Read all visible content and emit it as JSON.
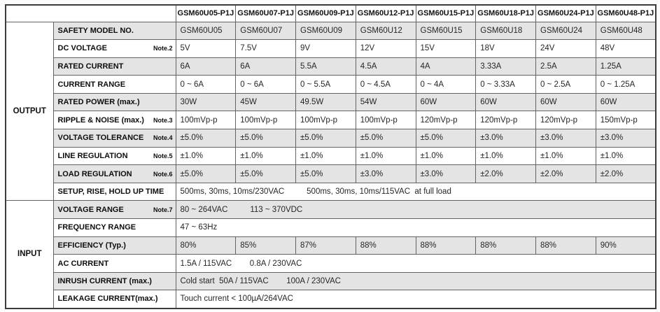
{
  "colors": {
    "row_shade": "#e4e4e4",
    "grid_border": "#636363",
    "outer_border": "#3c3c3c",
    "text": "#111111"
  },
  "header": {
    "corner_label": "",
    "models": [
      "GSM60U05-P1J",
      "GSM60U07-P1J",
      "GSM60U09-P1J",
      "GSM60U12-P1J",
      "GSM60U15-P1J",
      "GSM60U18-P1J",
      "GSM60U24-P1J",
      "GSM60U48-P1J"
    ]
  },
  "sections": [
    {
      "label": "OUTPUT",
      "rows": [
        {
          "label": "SAFETY MODEL NO.",
          "note": "",
          "shaded": true,
          "values": [
            "GSM60U05",
            "GSM60U07",
            "GSM60U09",
            "GSM60U12",
            "GSM60U15",
            "GSM60U18",
            "GSM60U24",
            "GSM60U48"
          ]
        },
        {
          "label": "DC VOLTAGE",
          "note": "Note.2",
          "shaded": false,
          "values": [
            "5V",
            "7.5V",
            "9V",
            "12V",
            "15V",
            "18V",
            "24V",
            "48V"
          ]
        },
        {
          "label": "RATED CURRENT",
          "note": "",
          "shaded": true,
          "values": [
            "6A",
            "6A",
            "5.5A",
            "4.5A",
            "4A",
            "3.33A",
            "2.5A",
            "1.25A"
          ]
        },
        {
          "label": "CURRENT RANGE",
          "note": "",
          "shaded": false,
          "values": [
            "0 ~ 6A",
            "0 ~ 6A",
            "0 ~ 5.5A",
            "0 ~ 4.5A",
            "0 ~ 4A",
            "0 ~ 3.33A",
            "0 ~ 2.5A",
            "0 ~ 1.25A"
          ]
        },
        {
          "label": "RATED POWER (max.)",
          "note": "",
          "shaded": true,
          "values": [
            "30W",
            "45W",
            "49.5W",
            "54W",
            "60W",
            "60W",
            "60W",
            "60W"
          ]
        },
        {
          "label": "RIPPLE & NOISE (max.)",
          "note": "Note.3",
          "shaded": false,
          "values": [
            "100mVp-p",
            "100mVp-p",
            "100mVp-p",
            "100mVp-p",
            "120mVp-p",
            "120mVp-p",
            "120mVp-p",
            "150mVp-p"
          ]
        },
        {
          "label": "VOLTAGE TOLERANCE",
          "note": "Note.4",
          "shaded": true,
          "values": [
            "±5.0%",
            "±5.0%",
            "±5.0%",
            "±5.0%",
            "±5.0%",
            "±3.0%",
            "±3.0%",
            "±3.0%"
          ]
        },
        {
          "label": "LINE REGULATION",
          "note": "Note.5",
          "shaded": false,
          "values": [
            "±1.0%",
            "±1.0%",
            "±1.0%",
            "±1.0%",
            "±1.0%",
            "±1.0%",
            "±1.0%",
            "±1.0%"
          ]
        },
        {
          "label": "LOAD REGULATION",
          "note": "Note.6",
          "shaded": true,
          "values": [
            "±5.0%",
            "±5.0%",
            "±5.0%",
            "±3.0%",
            "±3.0%",
            "±2.0%",
            "±2.0%",
            "±2.0%"
          ]
        },
        {
          "label": "SETUP, RISE, HOLD UP TIME",
          "note": "",
          "shaded": false,
          "span_value": "500ms, 30ms, 10ms/230VAC          500ms, 30ms, 10ms/115VAC  at full load"
        }
      ]
    },
    {
      "label": "INPUT",
      "rows": [
        {
          "label": "VOLTAGE RANGE",
          "note": "Note.7",
          "shaded": true,
          "span_value": "80 ~ 264VAC          113 ~ 370VDC"
        },
        {
          "label": "FREQUENCY RANGE",
          "note": "",
          "shaded": false,
          "span_value": "47 ~ 63Hz"
        },
        {
          "label": "EFFICIENCY (Typ.)",
          "note": "",
          "shaded": true,
          "values": [
            "80%",
            "85%",
            "87%",
            "88%",
            "88%",
            "88%",
            "88%",
            "90%"
          ]
        },
        {
          "label": "AC CURRENT",
          "note": "",
          "shaded": false,
          "span_value": "1.5A / 115VAC        0.8A / 230VAC"
        },
        {
          "label": "INRUSH CURRENT (max.)",
          "note": "",
          "shaded": true,
          "span_value": "Cold start  50A / 115VAC        100A / 230VAC"
        },
        {
          "label": "LEAKAGE CURRENT(max.)",
          "note": "",
          "shaded": false,
          "span_value": "Touch current < 100µA/264VAC"
        }
      ]
    }
  ]
}
